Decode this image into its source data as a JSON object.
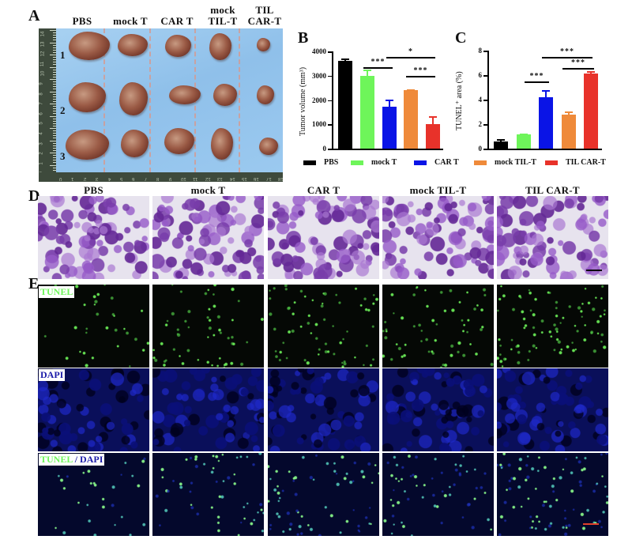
{
  "figure": {
    "panels": {
      "A": {
        "letter": "A",
        "column_headers": [
          "PBS",
          "mock T",
          "CAR T",
          "mock\nTIL-T",
          "TIL\nCAR-T"
        ],
        "column_headers_lines": [
          [
            "PBS"
          ],
          [
            "mock T"
          ],
          [
            "CAR T"
          ],
          [
            "mock",
            "TIL-T"
          ],
          [
            "TIL",
            "CAR-T"
          ]
        ],
        "row_labels": [
          "1",
          "2",
          "3"
        ],
        "ruler_vertical": [
          "14",
          "13",
          "12",
          "11",
          "10",
          "9",
          "8",
          "7",
          "6",
          "5",
          "4",
          "3",
          "2",
          "1",
          "0"
        ],
        "ruler_horizontal": [
          "0",
          "1",
          "2",
          "3",
          "4",
          "5",
          "6",
          "7",
          "8",
          "9",
          "10",
          "11",
          "12",
          "13",
          "14",
          "15",
          "16",
          "17",
          "18"
        ],
        "background_color": "#9cc8ee"
      },
      "B": {
        "letter": "B",
        "ylabel": "Tumor volume (mm³)",
        "significance": [
          {
            "from": "mock T",
            "to": "CAR T",
            "label": "***"
          },
          {
            "from": "CAR T",
            "to": "TIL CAR-T",
            "label": "*"
          },
          {
            "from": "mock TIL-T",
            "to": "TIL CAR-T",
            "label": "***"
          }
        ]
      },
      "C": {
        "letter": "C",
        "ylabel": "TUNEL⁺ area (%)",
        "significance": [
          {
            "from": "mock T",
            "to": "CAR T",
            "label": "***"
          },
          {
            "from": "CAR T",
            "to": "TIL CAR-T",
            "label": "***"
          },
          {
            "from": "mock TIL-T",
            "to": "TIL CAR-T",
            "label": "***"
          }
        ]
      },
      "D": {
        "letter": "D",
        "column_headers": [
          "PBS",
          "mock T",
          "CAR T",
          "mock TIL-T",
          "TIL CAR-T"
        ],
        "stain": "H&E"
      },
      "E": {
        "letter": "E",
        "row_labels": {
          "tunel": "TUNEL",
          "dapi": "DAPI",
          "merge_tunel": "TUNEL",
          "merge_sep": " / ",
          "merge_dapi": "DAPI"
        }
      }
    },
    "legend": [
      {
        "label": "PBS",
        "color": "#000000"
      },
      {
        "label": "mock T",
        "color": "#6ef55a"
      },
      {
        "label": "CAR T",
        "color": "#0a14e6"
      },
      {
        "label": "mock TIL-T",
        "color": "#ef8a3a"
      },
      {
        "label": "TIL CAR-T",
        "color": "#e8322a"
      }
    ],
    "colors": {
      "tunel_green": "#6ef55a",
      "dapi_blue": "#1a1aa8",
      "scale_bar_he": "#000000",
      "scale_bar_fluor": "#e0402a"
    }
  },
  "chart_data": [
    {
      "type": "bar",
      "panel": "B",
      "title": "",
      "categories": [
        "PBS",
        "mock T",
        "CAR T",
        "mock TIL-T",
        "TIL CAR-T"
      ],
      "values": [
        3620,
        3000,
        1730,
        2400,
        1000
      ],
      "error_upper": [
        3720,
        3250,
        2030,
        2450,
        1320
      ],
      "colors": [
        "#000000",
        "#6ef55a",
        "#0a14e6",
        "#ef8a3a",
        "#e8322a"
      ],
      "xlabel": "",
      "ylabel": "Tumor volume (mm³)",
      "ylim": [
        0,
        4000
      ],
      "yticks": [
        "0",
        "1000",
        "2000",
        "3000",
        "4000"
      ],
      "grid": false,
      "legend_position": "bottom",
      "annotations": [
        "*** mock T vs CAR T",
        "* CAR T vs TIL CAR-T",
        "*** mock TIL-T vs TIL CAR-T"
      ]
    },
    {
      "type": "bar",
      "panel": "C",
      "title": "",
      "categories": [
        "PBS",
        "mock T",
        "CAR T",
        "mock TIL-T",
        "TIL CAR-T"
      ],
      "values": [
        0.6,
        1.15,
        4.2,
        2.8,
        6.15
      ],
      "error_upper": [
        0.8,
        1.2,
        4.8,
        3.05,
        6.3
      ],
      "colors": [
        "#000000",
        "#6ef55a",
        "#0a14e6",
        "#ef8a3a",
        "#e8322a"
      ],
      "xlabel": "",
      "ylabel": "TUNEL⁺ area (%)",
      "ylim": [
        0,
        8
      ],
      "yticks": [
        "0",
        "2",
        "4",
        "6",
        "8"
      ],
      "grid": false,
      "legend_position": "bottom",
      "annotations": [
        "*** mock T vs CAR T",
        "*** CAR T vs TIL CAR-T",
        "*** mock TIL-T vs TIL CAR-T"
      ]
    }
  ]
}
